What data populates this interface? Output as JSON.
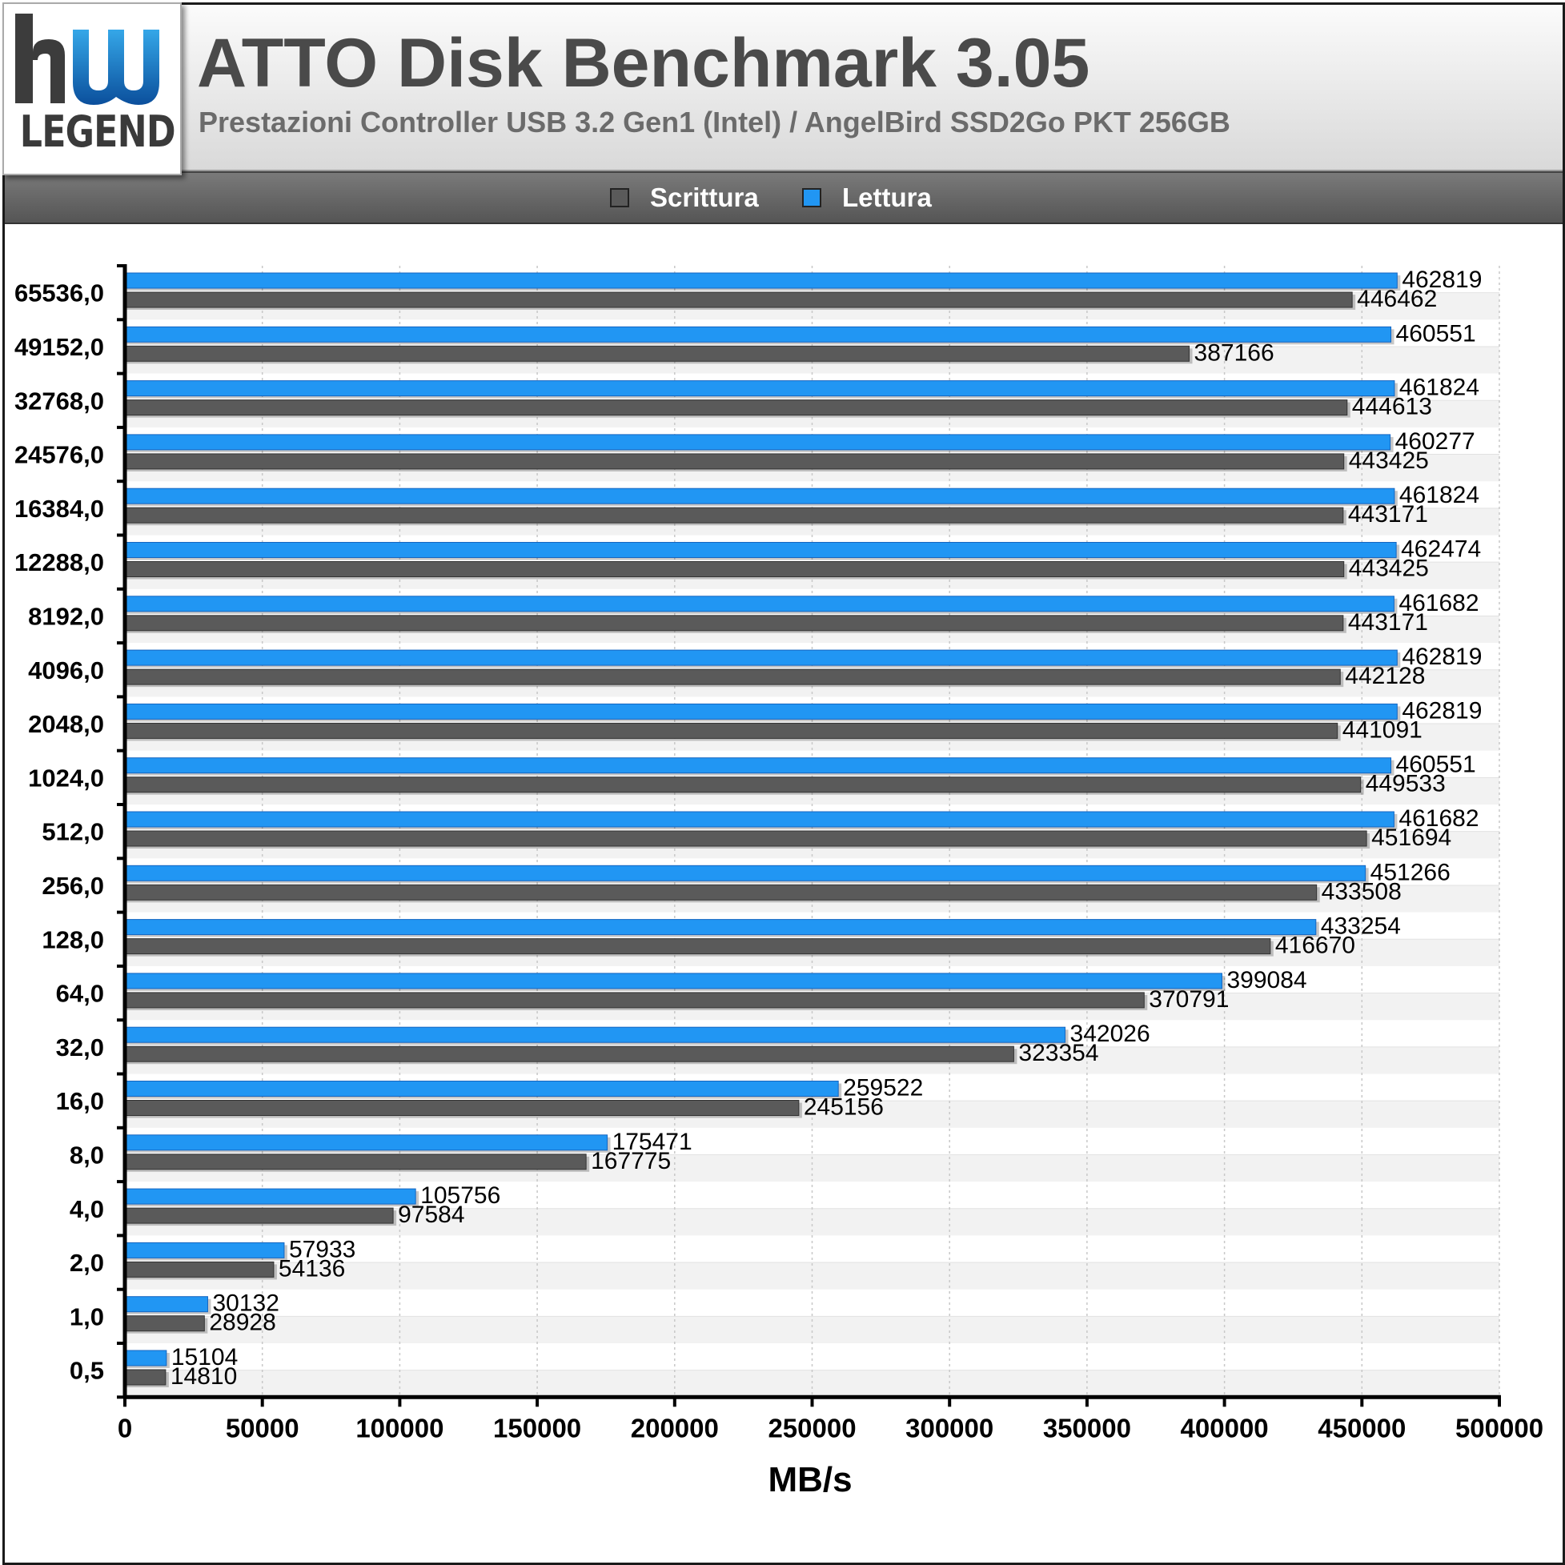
{
  "logo": {
    "text": "LEGEND"
  },
  "header": {
    "title": "ATTO Disk Benchmark 3.05",
    "subtitle": "Prestazioni Controller USB 3.2 Gen1 (Intel) / AngelBird SSD2Go PKT 256GB"
  },
  "legend": [
    {
      "label": "Scrittura",
      "color": "#5a5a5a"
    },
    {
      "label": "Lettura",
      "color": "#2196f3"
    }
  ],
  "colors": {
    "lettura": "#2196f3",
    "scrittura": "#5a5a5a",
    "band": "#f2f2f2",
    "axis": "#000000"
  },
  "chart_data": {
    "type": "bar",
    "orientation": "horizontal",
    "title": "ATTO Disk Benchmark 3.05",
    "subtitle": "Prestazioni Controller USB 3.2 Gen1 (Intel) / AngelBird SSD2Go PKT 256GB",
    "xlabel": "MB/s",
    "ylabel": "",
    "xlim": [
      0,
      500000
    ],
    "xticks": [
      "0",
      "50000",
      "100000",
      "150000",
      "200000",
      "250000",
      "300000",
      "350000",
      "400000",
      "450000",
      "500000"
    ],
    "grid": true,
    "legend_position": "top",
    "categories": [
      "65536,0",
      "49152,0",
      "32768,0",
      "24576,0",
      "16384,0",
      "12288,0",
      "8192,0",
      "4096,0",
      "2048,0",
      "1024,0",
      "512,0",
      "256,0",
      "128,0",
      "64,0",
      "32,0",
      "16,0",
      "8,0",
      "4,0",
      "2,0",
      "1,0",
      "0,5"
    ],
    "series": [
      {
        "name": "Lettura",
        "values": [
          462819,
          460551,
          461824,
          460277,
          461824,
          462474,
          461682,
          462819,
          462819,
          460551,
          461682,
          451266,
          433254,
          399084,
          342026,
          259522,
          175471,
          105756,
          57933,
          30132,
          15104
        ]
      },
      {
        "name": "Scrittura",
        "values": [
          446462,
          387166,
          444613,
          443425,
          443171,
          443425,
          443171,
          442128,
          441091,
          449533,
          451694,
          433508,
          416670,
          370791,
          323354,
          245156,
          167775,
          97584,
          54136,
          28928,
          14810
        ]
      }
    ]
  }
}
